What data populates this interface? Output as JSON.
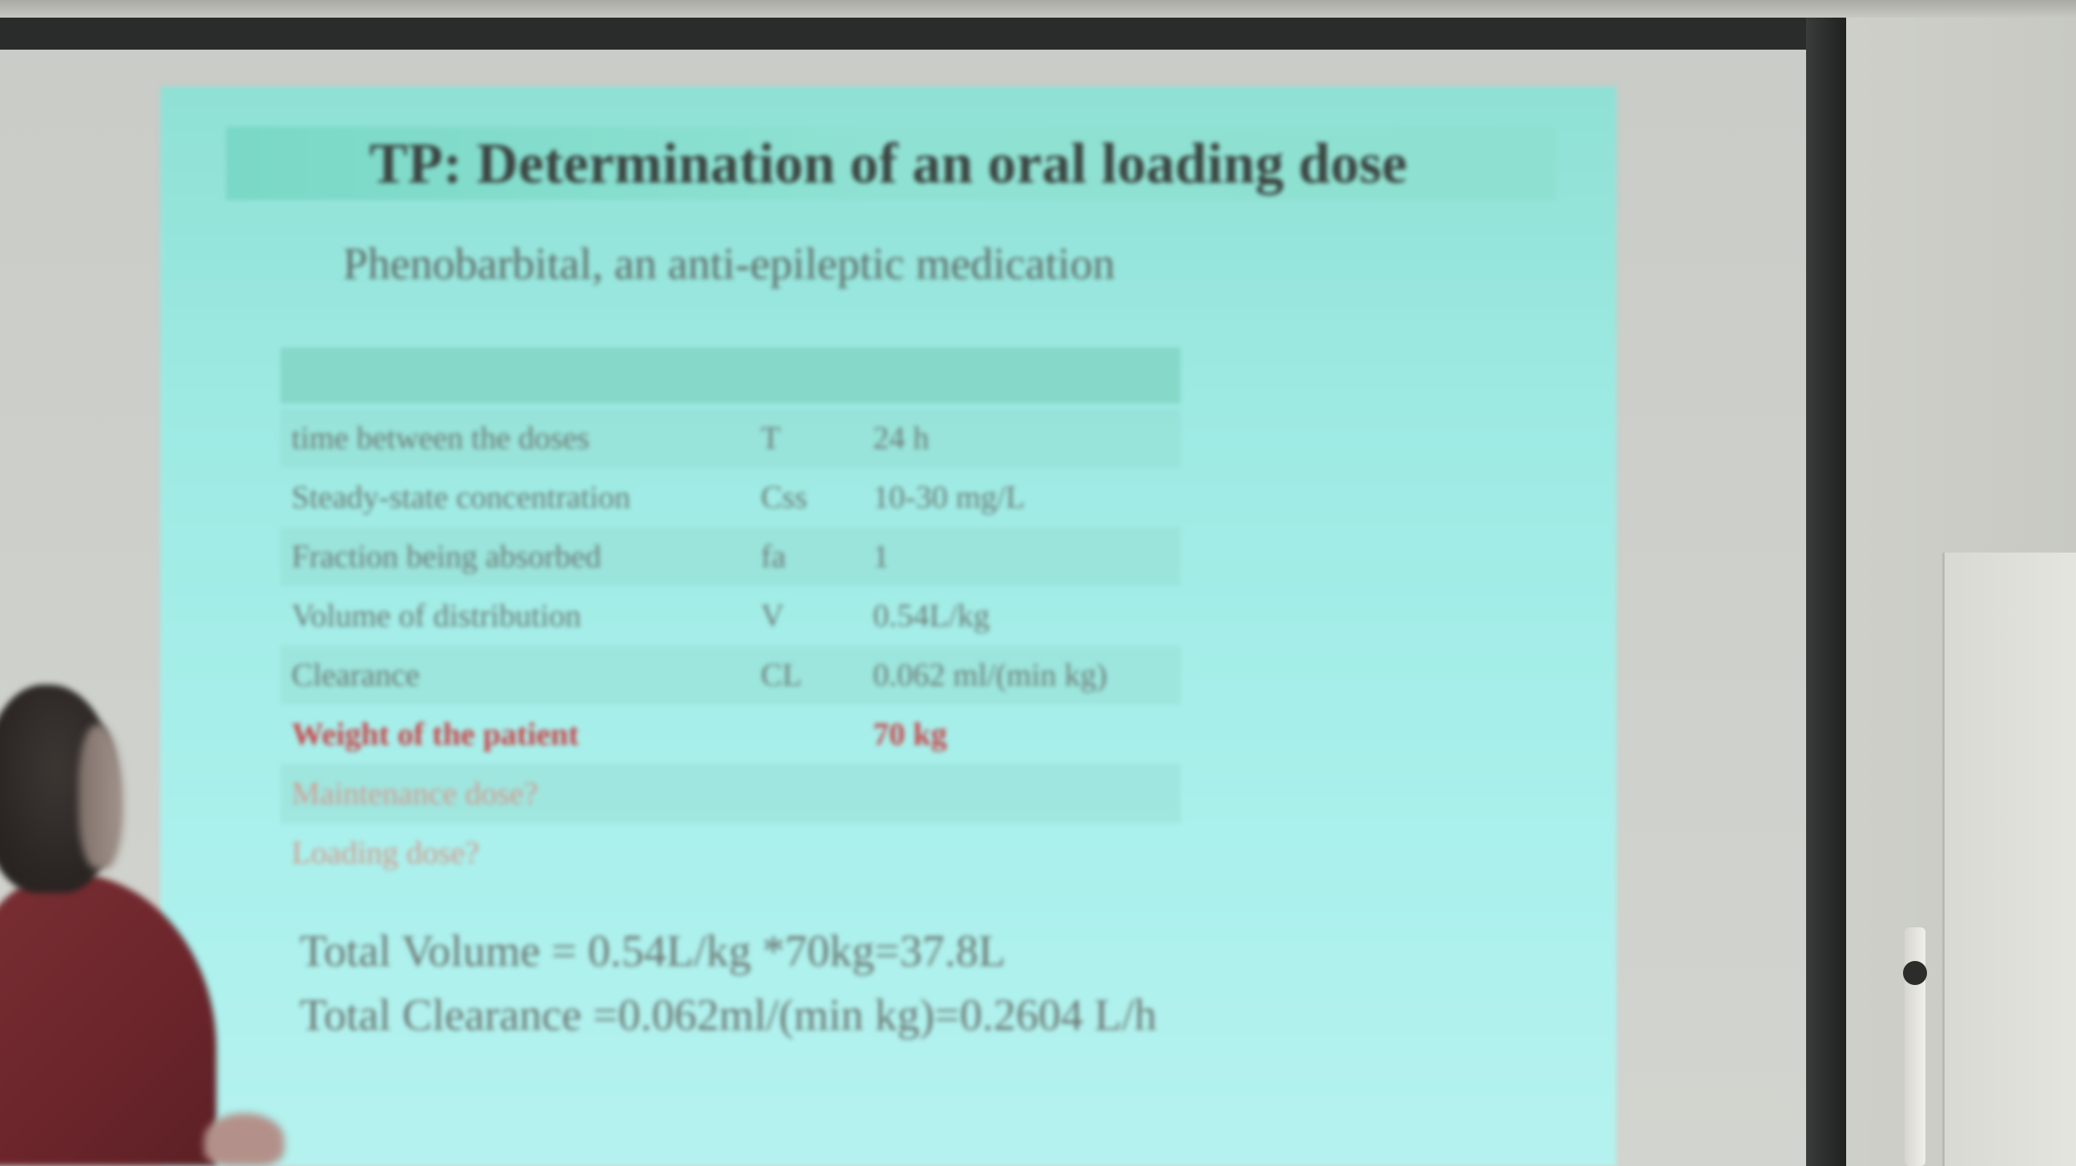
{
  "slide": {
    "title": "TP: Determination of an oral loading dose",
    "subtitle": "Phenobarbital, an anti-epileptic medication",
    "table": {
      "rows": [
        {
          "name": "time between the doses",
          "symbol": "T",
          "value": "24 h"
        },
        {
          "name": "Steady-state concentration",
          "symbol": "Css",
          "value": "10-30 mg/L"
        },
        {
          "name": "Fraction being absorbed",
          "symbol": "fa",
          "value": "1"
        },
        {
          "name": "Volume of distribution",
          "symbol": "V",
          "value": "0.54L/kg"
        },
        {
          "name": "Clearance",
          "symbol": "CL",
          "value": "0.062 ml/(min kg)"
        },
        {
          "name": "Weight of the patient",
          "symbol": "",
          "value": "70 kg"
        },
        {
          "name": "Maintenance dose?",
          "symbol": "",
          "value": ""
        },
        {
          "name": "Loading dose?",
          "symbol": "",
          "value": ""
        }
      ]
    },
    "calculations": {
      "total_volume": "Total Volume = 0.54L/kg *70kg=37.8L",
      "total_clearance": "Total Clearance =0.062ml/(min kg)=0.2604 L/h"
    }
  },
  "colors": {
    "slide_background": "#a8efe9",
    "title_bar": "#86dccb",
    "highlight_text": "#c8474c"
  }
}
